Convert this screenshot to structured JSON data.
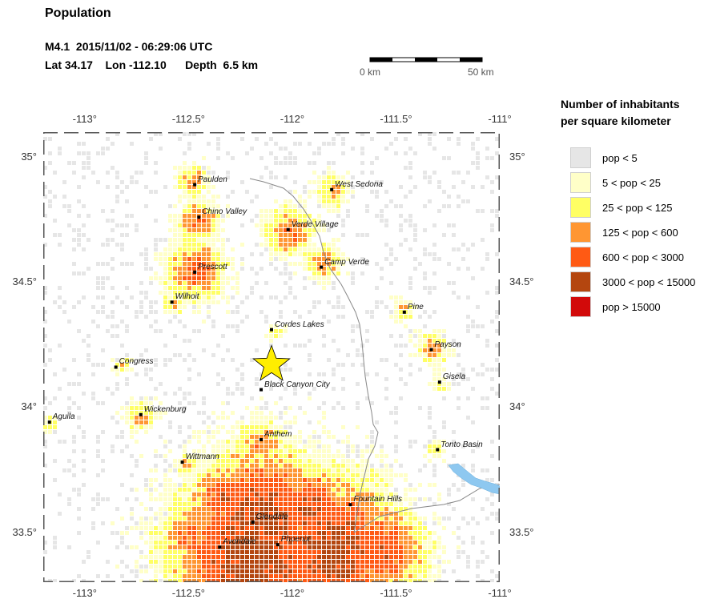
{
  "header": {
    "title": "Population",
    "event_line": "M4.1  2015/11/02 - 06:29:06 UTC",
    "coord_line": "Lat 34.17    Lon -112.10      Depth  6.5 km"
  },
  "scale_bar": {
    "left_label": "0 km",
    "right_label": "50 km"
  },
  "map": {
    "lon_range": [
      -113.2,
      -111.0
    ],
    "lat_range": [
      33.3,
      35.1
    ],
    "lon_ticks": [
      "-113°",
      "-112.5°",
      "-112°",
      "-111.5°",
      "-111°"
    ],
    "lat_ticks": [
      "35°",
      "34.5°",
      "34°",
      "33.5°"
    ],
    "epicenter": {
      "lat": 34.17,
      "lon": -112.1,
      "marker": "star-icon",
      "color": "#ffee00"
    },
    "water_color": "#8ec8f0",
    "cities": [
      {
        "name": "Paulden",
        "lat": 34.89,
        "lon": -112.47
      },
      {
        "name": "West Sedona",
        "lat": 34.87,
        "lon": -111.81
      },
      {
        "name": "Chino Valley",
        "lat": 34.76,
        "lon": -112.45
      },
      {
        "name": "Verde Village",
        "lat": 34.71,
        "lon": -112.02
      },
      {
        "name": "Camp Verde",
        "lat": 34.56,
        "lon": -111.86
      },
      {
        "name": "Prescott",
        "lat": 34.54,
        "lon": -112.47
      },
      {
        "name": "Wilhoit",
        "lat": 34.42,
        "lon": -112.58
      },
      {
        "name": "Pine",
        "lat": 34.38,
        "lon": -111.46
      },
      {
        "name": "Cordes Lakes",
        "lat": 34.31,
        "lon": -112.1
      },
      {
        "name": "Payson",
        "lat": 34.23,
        "lon": -111.33
      },
      {
        "name": "Congress",
        "lat": 34.16,
        "lon": -112.85
      },
      {
        "name": "Gisela",
        "lat": 34.1,
        "lon": -111.29
      },
      {
        "name": "Black Canyon City",
        "lat": 34.07,
        "lon": -112.15
      },
      {
        "name": "Wickenburg",
        "lat": 33.97,
        "lon": -112.73
      },
      {
        "name": "Aguila",
        "lat": 33.94,
        "lon": -113.17
      },
      {
        "name": "Anthem",
        "lat": 33.87,
        "lon": -112.15
      },
      {
        "name": "Tonto Basin",
        "lat": 33.83,
        "lon": -111.3
      },
      {
        "name": "Wittmann",
        "lat": 33.78,
        "lon": -112.53
      },
      {
        "name": "Fountain Hills",
        "lat": 33.61,
        "lon": -111.72
      },
      {
        "name": "Glendale",
        "lat": 33.54,
        "lon": -112.19
      },
      {
        "name": "Phoenix",
        "lat": 33.45,
        "lon": -112.07
      },
      {
        "name": "Avondale",
        "lat": 33.44,
        "lon": -112.35
      }
    ]
  },
  "legend": {
    "title_line1": "Number of inhabitants",
    "title_line2": "per square kilometer",
    "items": [
      {
        "label": "pop < 5",
        "color": "#e6e6e6"
      },
      {
        "label": "5 < pop < 25",
        "color": "#ffffc8"
      },
      {
        "label": "25 < pop < 125",
        "color": "#ffff64"
      },
      {
        "label": "125 < pop < 600",
        "color": "#ff9632"
      },
      {
        "label": "600 < pop < 3000",
        "color": "#ff5a14"
      },
      {
        "label": "3000 < pop < 15000",
        "color": "#b4460f"
      },
      {
        "label": "pop > 15000",
        "color": "#d20a0a"
      }
    ]
  }
}
